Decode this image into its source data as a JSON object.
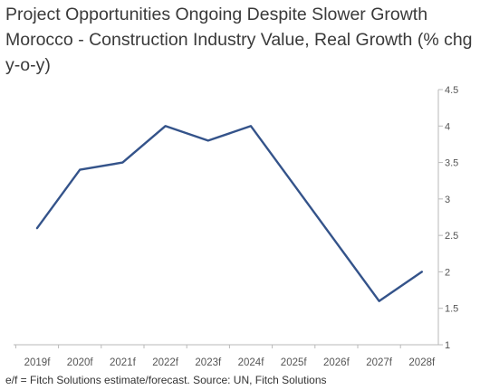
{
  "chart_data": {
    "type": "line",
    "title": "Project Opportunities Ongoing Despite Slower Growth",
    "subtitle": "Morocco - Construction Industry Value, Real Growth (% chg y-o-y)",
    "categories": [
      "2019f",
      "2020f",
      "2021f",
      "2022f",
      "2023f",
      "2024f",
      "2025f",
      "2026f",
      "2027f",
      "2028f"
    ],
    "series": [
      {
        "values": [
          2.6,
          3.4,
          3.5,
          4.0,
          3.8,
          4.0,
          3.2,
          2.4,
          1.6,
          2.0
        ],
        "color": "#34538a"
      }
    ],
    "y_ticks": [
      "1",
      "1.5",
      "2",
      "2.5",
      "3",
      "3.5",
      "4",
      "4.5"
    ],
    "ylim": [
      1,
      4.5
    ],
    "y_axis_position": "right",
    "grid": false,
    "legend": "none",
    "footnote": "e/f = Fitch Solutions estimate/forecast. Source: UN, Fitch Solutions"
  }
}
